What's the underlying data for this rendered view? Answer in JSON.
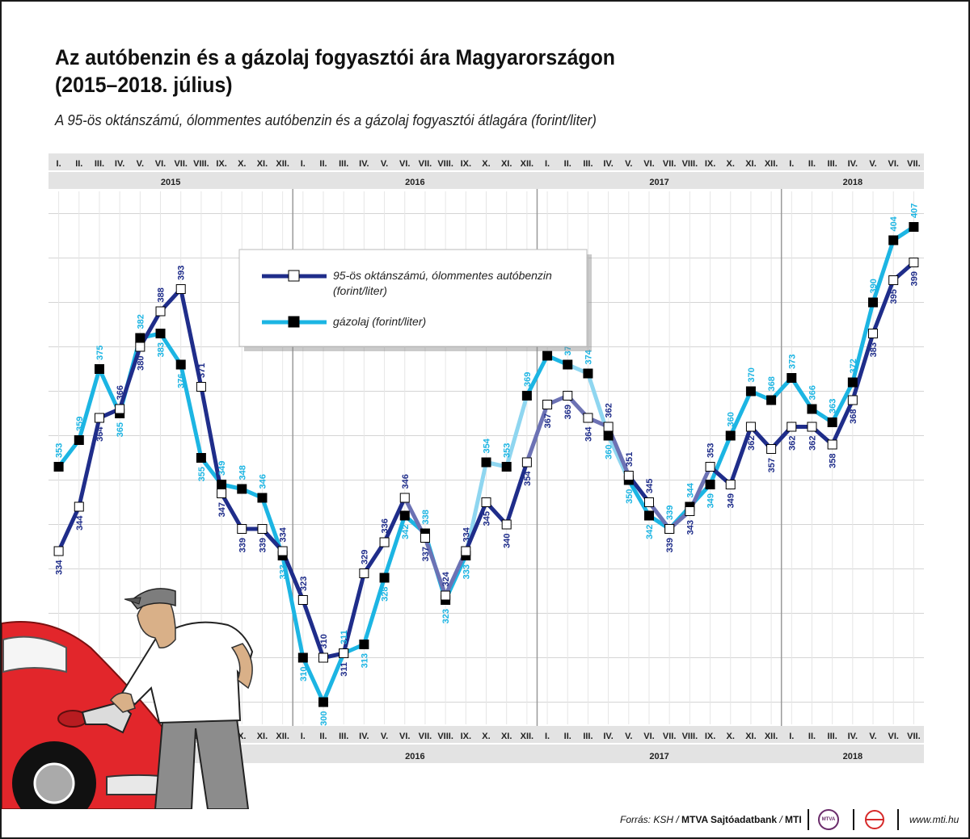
{
  "title_line1": "Az autóbenzin és a gázolaj fogyasztói ára Magyarországon",
  "title_line2": "(2015–2018. július)",
  "subtitle": "A 95-ös oktánszámú, ólommentes autóbenzin és a gázolaj fogyasztói átlagára (forint/liter)",
  "footer": {
    "source_prefix": "Forrás: KSH / ",
    "source_bold1": "MTVA Sajtóadatbank",
    "source_sep": " / ",
    "source_bold2": "MTI",
    "logo_text": "MTVA",
    "url": "www.mti.hu"
  },
  "colors": {
    "benzin": "#1f2d8a",
    "benzin_light": "#6c72b4",
    "gazolaj": "#1cb5e3",
    "gazolaj_light": "#8fd6f0",
    "header_bg": "#e3e3e3",
    "grid": "#d4d4d4",
    "car": "#e2262b"
  },
  "chart_data": {
    "type": "line",
    "months": [
      "I.",
      "II.",
      "III.",
      "IV.",
      "V.",
      "VI.",
      "VII.",
      "VIII.",
      "IX.",
      "X.",
      "XI.",
      "XII."
    ],
    "years": [
      "2015",
      "2016",
      "2017",
      "2018"
    ],
    "x_end": "2018. VII.",
    "ylim": [
      295,
      415
    ],
    "grid": true,
    "legend_position": "top-center",
    "series": [
      {
        "name": "95-ös oktánszámú, ólommentes autóbenzin (forint/liter)",
        "marker": "white-square",
        "values": [
          334,
          344,
          364,
          366,
          380,
          388,
          393,
          371,
          347,
          339,
          339,
          334,
          323,
          310,
          311,
          329,
          336,
          346,
          337,
          324,
          334,
          345,
          340,
          354,
          367,
          369,
          364,
          362,
          351,
          345,
          339,
          343,
          353,
          349,
          362,
          357,
          362,
          362,
          358,
          368,
          383,
          395,
          399
        ]
      },
      {
        "name": "gázolaj (forint/liter)",
        "marker": "black-square",
        "values": [
          353,
          359,
          375,
          365,
          382,
          383,
          376,
          355,
          349,
          348,
          346,
          333,
          310,
          300,
          311,
          313,
          328,
          342,
          338,
          323,
          333,
          354,
          353,
          369,
          378,
          376,
          374,
          360,
          350,
          342,
          339,
          344,
          349,
          360,
          370,
          368,
          373,
          366,
          363,
          372,
          390,
          404,
          407
        ]
      }
    ]
  }
}
